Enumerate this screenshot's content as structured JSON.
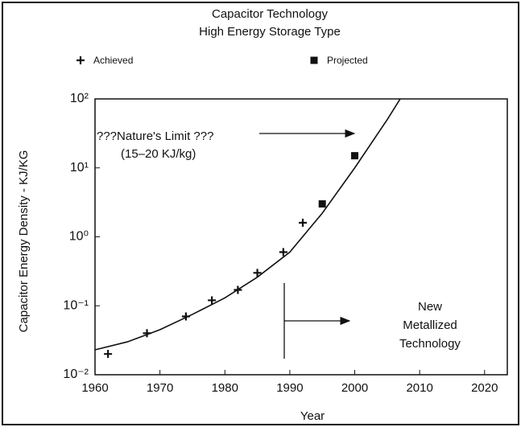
{
  "chart_data": {
    "type": "scatter",
    "title": "Capacitor Technology",
    "subtitle": "High Energy Storage Type",
    "xlabel": "Year",
    "ylabel": "Capacitor Energy Density - KJ/KG",
    "legend": "top",
    "ylog": true,
    "xlim": [
      1960,
      2023.5
    ],
    "ylim": [
      0.01,
      100
    ],
    "xticks": [
      1960,
      1970,
      1980,
      1990,
      2000,
      2010,
      2020
    ],
    "yticks": [
      {
        "value": 0.01,
        "label": "10⁻²"
      },
      {
        "value": 0.1,
        "label": "10⁻¹"
      },
      {
        "value": 1,
        "label": "10⁰"
      },
      {
        "value": 10,
        "label": "10¹"
      },
      {
        "value": 100,
        "label": "10²"
      }
    ],
    "series": [
      {
        "name": "Achieved",
        "marker": "plus",
        "color": "#111111",
        "x": [
          1962,
          1968,
          1974,
          1978,
          1982,
          1985,
          1989,
          1992
        ],
        "values": [
          0.02,
          0.04,
          0.07,
          0.12,
          0.17,
          0.3,
          0.6,
          1.6
        ]
      },
      {
        "name": "Projected",
        "marker": "square",
        "color": "#111111",
        "x": [
          1995,
          2000
        ],
        "values": [
          3,
          15
        ]
      },
      {
        "marker": "line",
        "color": "#111111",
        "x": [
          1960,
          1965,
          1970,
          1975,
          1980,
          1985,
          1990,
          1995,
          2000,
          2005,
          2007
        ],
        "values": [
          0.023,
          0.03,
          0.045,
          0.075,
          0.13,
          0.26,
          0.6,
          2.2,
          10,
          50,
          100
        ]
      }
    ],
    "annotations": [
      "???Nature's Limit ???",
      "(15–20 KJ/kg)",
      "New",
      "Metallized",
      "Technology"
    ]
  }
}
